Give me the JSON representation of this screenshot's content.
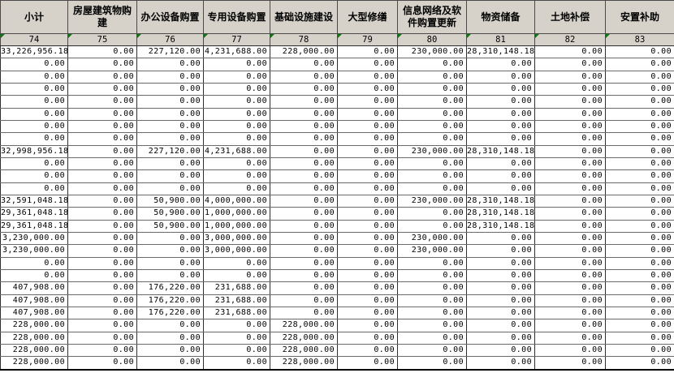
{
  "sheet": {
    "columns": [
      {
        "label": "小计",
        "code": "74"
      },
      {
        "label": "房屋建筑物购建",
        "code": "75"
      },
      {
        "label": "办公设备购置",
        "code": "76"
      },
      {
        "label": "专用设备购置",
        "code": "77"
      },
      {
        "label": "基础设施建设",
        "code": "78"
      },
      {
        "label": "大型修缮",
        "code": "79"
      },
      {
        "label": "信息网络及软件购置更新",
        "code": "80"
      },
      {
        "label": "物资储备",
        "code": "81"
      },
      {
        "label": "土地补偿",
        "code": "82"
      },
      {
        "label": "安置补助",
        "code": "83"
      }
    ],
    "rows": [
      [
        "33,226,956.18",
        "0.00",
        "227,120.00",
        "4,231,688.00",
        "228,000.00",
        "0.00",
        "230,000.00",
        "28,310,148.18",
        "0.00",
        "0.00"
      ],
      [
        "0.00",
        "0.00",
        "0.00",
        "0.00",
        "0.00",
        "0.00",
        "0.00",
        "0.00",
        "0.00",
        "0.00"
      ],
      [
        "0.00",
        "0.00",
        "0.00",
        "0.00",
        "0.00",
        "0.00",
        "0.00",
        "0.00",
        "0.00",
        "0.00"
      ],
      [
        "0.00",
        "0.00",
        "0.00",
        "0.00",
        "0.00",
        "0.00",
        "0.00",
        "0.00",
        "0.00",
        "0.00"
      ],
      [
        "0.00",
        "0.00",
        "0.00",
        "0.00",
        "0.00",
        "0.00",
        "0.00",
        "0.00",
        "0.00",
        "0.00"
      ],
      [
        "0.00",
        "0.00",
        "0.00",
        "0.00",
        "0.00",
        "0.00",
        "0.00",
        "0.00",
        "0.00",
        "0.00"
      ],
      [
        "0.00",
        "0.00",
        "0.00",
        "0.00",
        "0.00",
        "0.00",
        "0.00",
        "0.00",
        "0.00",
        "0.00"
      ],
      [
        "0.00",
        "0.00",
        "0.00",
        "0.00",
        "0.00",
        "0.00",
        "0.00",
        "0.00",
        "0.00",
        "0.00"
      ],
      [
        "32,998,956.18",
        "0.00",
        "227,120.00",
        "4,231,688.00",
        "0.00",
        "0.00",
        "230,000.00",
        "28,310,148.18",
        "0.00",
        "0.00"
      ],
      [
        "0.00",
        "0.00",
        "0.00",
        "0.00",
        "0.00",
        "0.00",
        "0.00",
        "0.00",
        "0.00",
        "0.00"
      ],
      [
        "0.00",
        "0.00",
        "0.00",
        "0.00",
        "0.00",
        "0.00",
        "0.00",
        "0.00",
        "0.00",
        "0.00"
      ],
      [
        "0.00",
        "0.00",
        "0.00",
        "0.00",
        "0.00",
        "0.00",
        "0.00",
        "0.00",
        "0.00",
        "0.00"
      ],
      [
        "32,591,048.18",
        "0.00",
        "50,900.00",
        "4,000,000.00",
        "0.00",
        "0.00",
        "230,000.00",
        "28,310,148.18",
        "0.00",
        "0.00"
      ],
      [
        "29,361,048.18",
        "0.00",
        "50,900.00",
        "1,000,000.00",
        "0.00",
        "0.00",
        "0.00",
        "28,310,148.18",
        "0.00",
        "0.00"
      ],
      [
        "29,361,048.18",
        "0.00",
        "50,900.00",
        "1,000,000.00",
        "0.00",
        "0.00",
        "0.00",
        "28,310,148.18",
        "0.00",
        "0.00"
      ],
      [
        "3,230,000.00",
        "0.00",
        "0.00",
        "3,000,000.00",
        "0.00",
        "0.00",
        "230,000.00",
        "0.00",
        "0.00",
        "0.00"
      ],
      [
        "3,230,000.00",
        "0.00",
        "0.00",
        "3,000,000.00",
        "0.00",
        "0.00",
        "230,000.00",
        "0.00",
        "0.00",
        "0.00"
      ],
      [
        "0.00",
        "0.00",
        "0.00",
        "0.00",
        "0.00",
        "0.00",
        "0.00",
        "0.00",
        "0.00",
        "0.00"
      ],
      [
        "0.00",
        "0.00",
        "0.00",
        "0.00",
        "0.00",
        "0.00",
        "0.00",
        "0.00",
        "0.00",
        "0.00"
      ],
      [
        "407,908.00",
        "0.00",
        "176,220.00",
        "231,688.00",
        "0.00",
        "0.00",
        "0.00",
        "0.00",
        "0.00",
        "0.00"
      ],
      [
        "407,908.00",
        "0.00",
        "176,220.00",
        "231,688.00",
        "0.00",
        "0.00",
        "0.00",
        "0.00",
        "0.00",
        "0.00"
      ],
      [
        "407,908.00",
        "0.00",
        "176,220.00",
        "231,688.00",
        "0.00",
        "0.00",
        "0.00",
        "0.00",
        "0.00",
        "0.00"
      ],
      [
        "228,000.00",
        "0.00",
        "0.00",
        "0.00",
        "228,000.00",
        "0.00",
        "0.00",
        "0.00",
        "0.00",
        "0.00"
      ],
      [
        "228,000.00",
        "0.00",
        "0.00",
        "0.00",
        "228,000.00",
        "0.00",
        "0.00",
        "0.00",
        "0.00",
        "0.00"
      ],
      [
        "228,000.00",
        "0.00",
        "0.00",
        "0.00",
        "228,000.00",
        "0.00",
        "0.00",
        "0.00",
        "0.00",
        "0.00"
      ],
      [
        "228,000.00",
        "0.00",
        "0.00",
        "0.00",
        "228,000.00",
        "0.00",
        "0.00",
        "0.00",
        "0.00",
        "0.00"
      ]
    ],
    "colors": {
      "header_bg": "#d6d2ca",
      "grid_line": "#4a4a4a",
      "smart_tag_green": "#0a7a0a",
      "cell_bg": "#ffffff"
    }
  }
}
